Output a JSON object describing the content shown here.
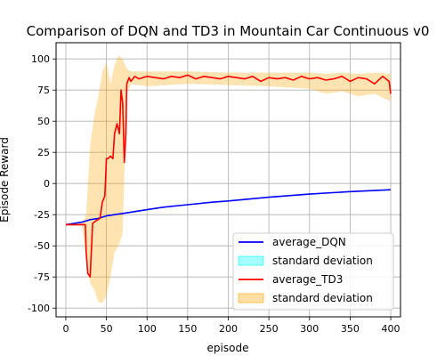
{
  "chart_data": {
    "type": "line",
    "title": "Comparison of DQN and TD3 in Mountain Car Continuous v0",
    "xlabel": "episode",
    "ylabel": "Episode Reward",
    "xlim": [
      -12,
      412
    ],
    "ylim": [
      -107,
      113
    ],
    "xticks": [
      0,
      50,
      100,
      150,
      200,
      250,
      300,
      350,
      400
    ],
    "yticks": [
      -100,
      -75,
      -50,
      -25,
      0,
      25,
      50,
      75,
      100
    ],
    "grid": true,
    "legend_position": "lower-right",
    "series": [
      {
        "name": "average_DQN",
        "color": "#0000ff",
        "x": [
          0,
          10,
          20,
          30,
          40,
          50,
          60,
          70,
          80,
          100,
          120,
          150,
          180,
          200,
          250,
          300,
          350,
          400
        ],
        "y": [
          -33,
          -32,
          -31,
          -29,
          -28,
          -26,
          -25,
          -24,
          -23,
          -21,
          -19,
          -17,
          -15,
          -14,
          -11,
          -8.5,
          -6.5,
          -5
        ]
      },
      {
        "name": "standard deviation",
        "color": "#00ffff",
        "x": [],
        "lower": [],
        "upper": []
      },
      {
        "name": "average_TD3",
        "color": "#ff0000",
        "x": [
          0,
          10,
          20,
          24,
          25,
          27,
          30,
          33,
          37,
          42,
          45,
          48,
          50,
          52,
          55,
          58,
          60,
          63,
          66,
          68,
          70,
          72,
          74,
          75,
          78,
          80,
          85,
          90,
          100,
          110,
          120,
          130,
          140,
          150,
          160,
          170,
          180,
          190,
          200,
          210,
          220,
          230,
          240,
          250,
          260,
          270,
          280,
          290,
          300,
          310,
          320,
          330,
          340,
          350,
          360,
          370,
          380,
          390,
          398,
          400
        ],
        "y": [
          -33,
          -33,
          -33,
          -33,
          -55,
          -72,
          -75,
          -32,
          -30,
          -28,
          -15,
          -10,
          20,
          20,
          22,
          20,
          40,
          48,
          40,
          75,
          65,
          17,
          40,
          80,
          85,
          82,
          86,
          84,
          86,
          85,
          84,
          86,
          85,
          87,
          84,
          86,
          85,
          84,
          86,
          85,
          84,
          86,
          82,
          85,
          84,
          85,
          83,
          86,
          84,
          85,
          83,
          84,
          86,
          82,
          85,
          84,
          80,
          86,
          82,
          72
        ]
      },
      {
        "name": "standard deviation",
        "color": "#ffa500",
        "x": [
          0,
          10,
          20,
          25,
          30,
          35,
          40,
          45,
          50,
          55,
          60,
          65,
          70,
          75,
          80,
          100,
          150,
          200,
          250,
          300,
          320,
          340,
          360,
          380,
          400
        ],
        "lower": [
          -34,
          -34,
          -34,
          -60,
          -80,
          -85,
          -95,
          -96,
          -90,
          -75,
          -55,
          -50,
          -40,
          72,
          80,
          78,
          80,
          79,
          78,
          76,
          72,
          74,
          70,
          72,
          66
        ],
        "upper": [
          -32,
          -32,
          -32,
          -25,
          30,
          55,
          70,
          90,
          97,
          80,
          95,
          103,
          100,
          92,
          90,
          90,
          90,
          89,
          89,
          89,
          88,
          89,
          88,
          89,
          88
        ]
      }
    ]
  }
}
